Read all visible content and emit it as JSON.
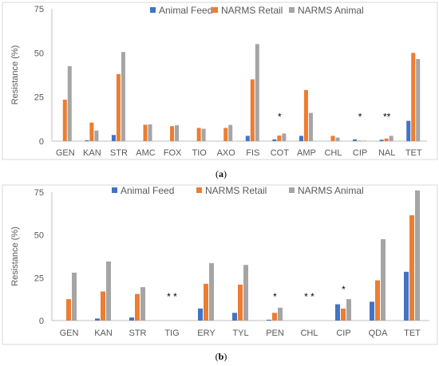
{
  "colors": {
    "Animal Feed": "#4472C4",
    "NARMS Retail": "#ED7D31",
    "NARMS Animal": "#A5A5A5",
    "axis": "#BFBFBF",
    "text": "#595959"
  },
  "chart_data": [
    {
      "type": "bar",
      "ylabel": "Resistance (%)",
      "ylim": [
        0,
        75
      ],
      "yticks": [
        0,
        25,
        50,
        75
      ],
      "legend_position": "top-right",
      "caption": {
        "open": "(",
        "letter": "a",
        "close": ")"
      },
      "categories": [
        "GEN",
        "KAN",
        "STR",
        "AMC",
        "FOX",
        "TIO",
        "AXO",
        "FIS",
        "COT",
        "AMP",
        "CHL",
        "CIP",
        "NAL",
        "TET"
      ],
      "series": [
        {
          "name": "Animal Feed",
          "values": [
            0,
            0.5,
            3.5,
            0,
            0,
            0,
            0,
            3,
            1,
            3,
            0,
            1,
            0.8,
            11.5
          ]
        },
        {
          "name": "NARMS Retail",
          "values": [
            23.5,
            10.5,
            38,
            9.3,
            8.5,
            7.5,
            7.5,
            35,
            3.2,
            29,
            3,
            0.3,
            1.5,
            50
          ]
        },
        {
          "name": "NARMS Animal",
          "values": [
            42.5,
            6,
            50.5,
            9.5,
            9,
            7,
            9.2,
            55,
            4.3,
            16,
            2,
            0.3,
            3,
            46.5
          ]
        }
      ],
      "markers": [
        {
          "category": "COT",
          "text": "*"
        },
        {
          "category": "CIP",
          "text": "*"
        },
        {
          "category": "NAL",
          "text": "**"
        }
      ]
    },
    {
      "type": "bar",
      "ylabel": "Resistance (%)",
      "ylim": [
        0,
        75
      ],
      "yticks": [
        0,
        25,
        50,
        75
      ],
      "legend_position": "top",
      "caption": {
        "open": "(",
        "letter": "b",
        "close": ")"
      },
      "categories": [
        "GEN",
        "KAN",
        "STR",
        "TIG",
        "ERY",
        "TYL",
        "PEN",
        "CHL",
        "CIP",
        "QDA",
        "TET"
      ],
      "series": [
        {
          "name": "Animal Feed",
          "values": [
            0,
            1.2,
            1.8,
            0,
            7,
            4.5,
            0.5,
            0,
            9.5,
            11,
            28.5
          ]
        },
        {
          "name": "NARMS Retail",
          "values": [
            12.5,
            17,
            15.5,
            0,
            21.5,
            21,
            4.5,
            0,
            7,
            23.5,
            61.5
          ]
        },
        {
          "name": "NARMS Animal",
          "values": [
            28,
            34.5,
            19.5,
            0,
            33.5,
            32.5,
            7.5,
            0,
            12.5,
            47.5,
            76
          ]
        }
      ],
      "markers": [
        {
          "category": "TIG",
          "text": "* *"
        },
        {
          "category": "PEN",
          "text": "*"
        },
        {
          "category": "CHL",
          "text": "* *"
        },
        {
          "category": "CIP",
          "text": "*"
        }
      ]
    }
  ]
}
